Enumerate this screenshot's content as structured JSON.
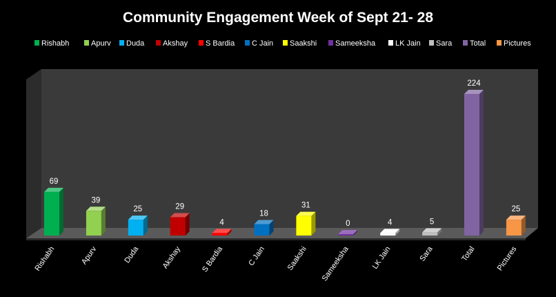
{
  "chart_data": {
    "type": "bar",
    "title": "Community Engagement Week of Sept 21- 28",
    "xlabel": "",
    "ylabel": "",
    "ylim": [
      0,
      240
    ],
    "grid": false,
    "legend_position": "top",
    "categories": [
      "Rishabh",
      "Apurv",
      "Duda",
      "Akshay",
      "S Bardia",
      "C Jain",
      "Saakshi",
      "Sameeksha",
      "LK Jain",
      "Sara",
      "Total",
      "Pictures"
    ],
    "values": [
      69,
      39,
      25,
      29,
      4,
      18,
      31,
      0,
      4,
      5,
      224,
      25
    ],
    "colors": [
      "#00B050",
      "#92D050",
      "#00B0F0",
      "#C00000",
      "#FF0000",
      "#0070C0",
      "#FFFF00",
      "#7030A0",
      "#FFFFFF",
      "#BFBFBF",
      "#8064A2",
      "#F79646"
    ]
  }
}
